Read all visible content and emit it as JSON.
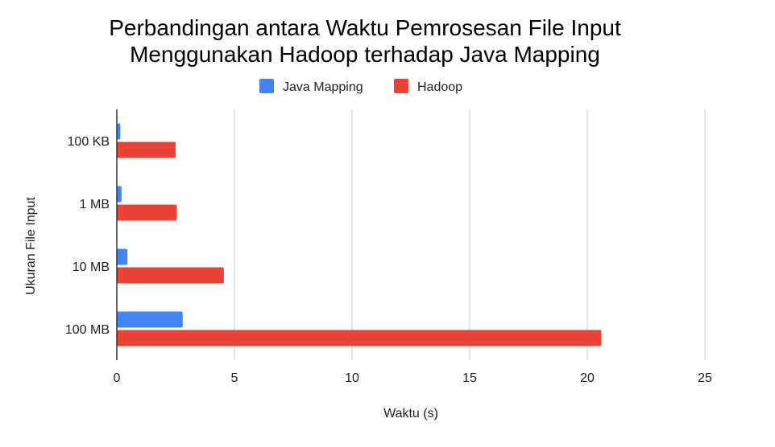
{
  "chart_data": {
    "type": "bar",
    "orientation": "horizontal",
    "title": [
      "Perbandingan antara Waktu Pemrosesan File Input",
      "Menggunakan Hadoop terhadap Java Mapping"
    ],
    "xlabel": "Waktu (s)",
    "ylabel": "Ukuran File Input",
    "categories": [
      "100 KB",
      "1 MB",
      "10 MB",
      "100 MB"
    ],
    "series": [
      {
        "name": "Java Mapping",
        "color": "#4285f4",
        "values": [
          0.15,
          0.2,
          0.45,
          2.8
        ]
      },
      {
        "name": "Hadoop",
        "color": "#ea4335",
        "values": [
          2.5,
          2.55,
          4.55,
          20.6
        ]
      }
    ],
    "xlim": [
      0,
      25
    ],
    "xticks": [
      0,
      5,
      10,
      15,
      20,
      25
    ],
    "grid": true,
    "legend_position": "top"
  }
}
